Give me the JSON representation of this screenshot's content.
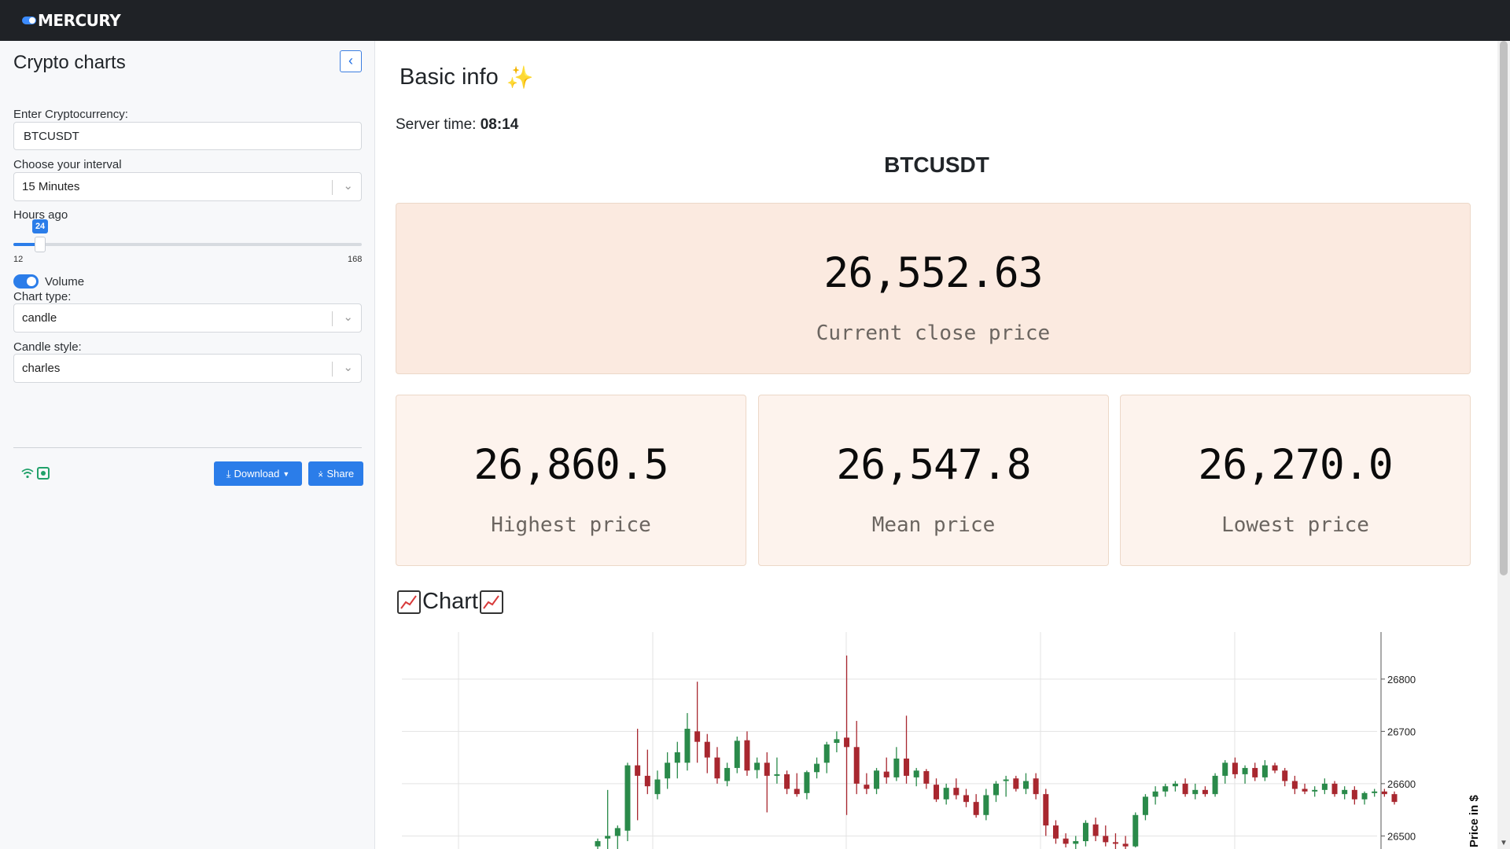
{
  "app": {
    "brand": "MERCURY"
  },
  "sidebar": {
    "title": "Crypto charts",
    "collapse_icon": "chevron-left-icon",
    "crypto_label": "Enter Cryptocurrency:",
    "crypto_value": "BTCUSDT",
    "interval_label": "Choose your interval",
    "interval_value": "15 Minutes",
    "hours_label": "Hours ago",
    "hours_value": "24",
    "hours_level": 0.0769,
    "hours_min": "12",
    "hours_max": "168",
    "volume_label": "Volume",
    "volume_on": true,
    "chart_type_label": "Chart type:",
    "chart_type_value": "candle",
    "candle_style_label": "Candle style:",
    "candle_style_value": "charles",
    "download_label": "Download",
    "share_label": "Share"
  },
  "main": {
    "heading": "Basic info",
    "heading_icon": "sparkles-icon",
    "server_time_label": "Server time:",
    "server_time_value": "08:14",
    "symbol": "BTCUSDT",
    "close_price": "26,552.63",
    "close_caption": "Current close price",
    "high_price": "26,860.5",
    "high_caption": "Highest price",
    "mean_price": "26,547.8",
    "mean_caption": "Mean price",
    "low_price": "26,270.0",
    "low_caption": "Lowest price",
    "chart_heading": "Chart"
  },
  "colors": {
    "accent": "#2b7de9",
    "up": "#2a8a4a",
    "down": "#a8272f",
    "card_main": "#fbeae0",
    "card": "#fdf3ed"
  },
  "chart_data": {
    "type": "candlestick",
    "ylabel": "Price in $",
    "yticks": [
      26800,
      26700,
      26600,
      26500
    ],
    "ylim": [
      26475,
      26890
    ],
    "candles": [
      {
        "o": 26480,
        "h": 26495,
        "l": 26460,
        "c": 26490
      },
      {
        "o": 26495,
        "h": 26588,
        "l": 26470,
        "c": 26500
      },
      {
        "o": 26500,
        "h": 26520,
        "l": 26470,
        "c": 26515
      },
      {
        "o": 26510,
        "h": 26640,
        "l": 26490,
        "c": 26635
      },
      {
        "o": 26635,
        "h": 26705,
        "l": 26530,
        "c": 26615
      },
      {
        "o": 26615,
        "h": 26665,
        "l": 26580,
        "c": 26595
      },
      {
        "o": 26580,
        "h": 26625,
        "l": 26570,
        "c": 26608
      },
      {
        "o": 26610,
        "h": 26660,
        "l": 26590,
        "c": 26640
      },
      {
        "o": 26640,
        "h": 26680,
        "l": 26610,
        "c": 26660
      },
      {
        "o": 26640,
        "h": 26735,
        "l": 26625,
        "c": 26705
      },
      {
        "o": 26700,
        "h": 26795,
        "l": 26640,
        "c": 26680
      },
      {
        "o": 26680,
        "h": 26695,
        "l": 26620,
        "c": 26650
      },
      {
        "o": 26650,
        "h": 26670,
        "l": 26600,
        "c": 26610
      },
      {
        "o": 26605,
        "h": 26640,
        "l": 26595,
        "c": 26630
      },
      {
        "o": 26630,
        "h": 26690,
        "l": 26620,
        "c": 26682
      },
      {
        "o": 26683,
        "h": 26700,
        "l": 26615,
        "c": 26625
      },
      {
        "o": 26626,
        "h": 26650,
        "l": 26610,
        "c": 26640
      },
      {
        "o": 26640,
        "h": 26660,
        "l": 26545,
        "c": 26615
      },
      {
        "o": 26615,
        "h": 26650,
        "l": 26600,
        "c": 26618
      },
      {
        "o": 26618,
        "h": 26625,
        "l": 26580,
        "c": 26590
      },
      {
        "o": 26590,
        "h": 26620,
        "l": 26575,
        "c": 26580
      },
      {
        "o": 26582,
        "h": 26625,
        "l": 26570,
        "c": 26622
      },
      {
        "o": 26622,
        "h": 26650,
        "l": 26610,
        "c": 26638
      },
      {
        "o": 26640,
        "h": 26680,
        "l": 26620,
        "c": 26675
      },
      {
        "o": 26678,
        "h": 26700,
        "l": 26660,
        "c": 26685
      },
      {
        "o": 26688,
        "h": 26845,
        "l": 26540,
        "c": 26670
      },
      {
        "o": 26670,
        "h": 26720,
        "l": 26580,
        "c": 26600
      },
      {
        "o": 26598,
        "h": 26620,
        "l": 26580,
        "c": 26590
      },
      {
        "o": 26590,
        "h": 26630,
        "l": 26580,
        "c": 26625
      },
      {
        "o": 26623,
        "h": 26650,
        "l": 26600,
        "c": 26612
      },
      {
        "o": 26612,
        "h": 26670,
        "l": 26605,
        "c": 26648
      },
      {
        "o": 26648,
        "h": 26730,
        "l": 26600,
        "c": 26615
      },
      {
        "o": 26612,
        "h": 26630,
        "l": 26595,
        "c": 26625
      },
      {
        "o": 26624,
        "h": 26628,
        "l": 26590,
        "c": 26600
      },
      {
        "o": 26598,
        "h": 26610,
        "l": 26565,
        "c": 26570
      },
      {
        "o": 26570,
        "h": 26600,
        "l": 26560,
        "c": 26592
      },
      {
        "o": 26592,
        "h": 26610,
        "l": 26570,
        "c": 26578
      },
      {
        "o": 26578,
        "h": 26590,
        "l": 26555,
        "c": 26565
      },
      {
        "o": 26565,
        "h": 26580,
        "l": 26535,
        "c": 26540
      },
      {
        "o": 26540,
        "h": 26590,
        "l": 26530,
        "c": 26578
      },
      {
        "o": 26578,
        "h": 26605,
        "l": 26565,
        "c": 26600
      },
      {
        "o": 26605,
        "h": 26615,
        "l": 26575,
        "c": 26608
      },
      {
        "o": 26610,
        "h": 26615,
        "l": 26585,
        "c": 26590
      },
      {
        "o": 26590,
        "h": 26620,
        "l": 26580,
        "c": 26605
      },
      {
        "o": 26610,
        "h": 26620,
        "l": 26570,
        "c": 26580
      },
      {
        "o": 26580,
        "h": 26590,
        "l": 26500,
        "c": 26520
      },
      {
        "o": 26520,
        "h": 26530,
        "l": 26485,
        "c": 26495
      },
      {
        "o": 26495,
        "h": 26505,
        "l": 26478,
        "c": 26485
      },
      {
        "o": 26485,
        "h": 26500,
        "l": 26470,
        "c": 26490
      },
      {
        "o": 26490,
        "h": 26530,
        "l": 26480,
        "c": 26525
      },
      {
        "o": 26522,
        "h": 26535,
        "l": 26490,
        "c": 26500
      },
      {
        "o": 26500,
        "h": 26520,
        "l": 26480,
        "c": 26488
      },
      {
        "o": 26488,
        "h": 26505,
        "l": 26475,
        "c": 26485
      },
      {
        "o": 26485,
        "h": 26500,
        "l": 26475,
        "c": 26480
      },
      {
        "o": 26480,
        "h": 26545,
        "l": 26478,
        "c": 26540
      },
      {
        "o": 26540,
        "h": 26580,
        "l": 26530,
        "c": 26575
      },
      {
        "o": 26575,
        "h": 26595,
        "l": 26560,
        "c": 26585
      },
      {
        "o": 26585,
        "h": 26600,
        "l": 26575,
        "c": 26595
      },
      {
        "o": 26595,
        "h": 26605,
        "l": 26585,
        "c": 26600
      },
      {
        "o": 26600,
        "h": 26610,
        "l": 26575,
        "c": 26580
      },
      {
        "o": 26580,
        "h": 26600,
        "l": 26570,
        "c": 26588
      },
      {
        "o": 26588,
        "h": 26595,
        "l": 26575,
        "c": 26580
      },
      {
        "o": 26580,
        "h": 26620,
        "l": 26575,
        "c": 26615
      },
      {
        "o": 26615,
        "h": 26645,
        "l": 26600,
        "c": 26640
      },
      {
        "o": 26640,
        "h": 26650,
        "l": 26610,
        "c": 26618
      },
      {
        "o": 26618,
        "h": 26635,
        "l": 26600,
        "c": 26630
      },
      {
        "o": 26630,
        "h": 26640,
        "l": 26605,
        "c": 26612
      },
      {
        "o": 26612,
        "h": 26645,
        "l": 26605,
        "c": 26635
      },
      {
        "o": 26635,
        "h": 26640,
        "l": 26620,
        "c": 26625
      },
      {
        "o": 26625,
        "h": 26630,
        "l": 26595,
        "c": 26605
      },
      {
        "o": 26605,
        "h": 26615,
        "l": 26580,
        "c": 26590
      },
      {
        "o": 26590,
        "h": 26600,
        "l": 26580,
        "c": 26585
      },
      {
        "o": 26585,
        "h": 26595,
        "l": 26575,
        "c": 26588
      },
      {
        "o": 26588,
        "h": 26610,
        "l": 26580,
        "c": 26600
      },
      {
        "o": 26600,
        "h": 26605,
        "l": 26575,
        "c": 26580
      },
      {
        "o": 26580,
        "h": 26595,
        "l": 26570,
        "c": 26588
      },
      {
        "o": 26588,
        "h": 26595,
        "l": 26560,
        "c": 26570
      },
      {
        "o": 26570,
        "h": 26585,
        "l": 26560,
        "c": 26582
      },
      {
        "o": 26582,
        "h": 26590,
        "l": 26575,
        "c": 26585
      },
      {
        "o": 26585,
        "h": 26590,
        "l": 26575,
        "c": 26580
      },
      {
        "o": 26580,
        "h": 26585,
        "l": 26560,
        "c": 26565
      }
    ]
  }
}
